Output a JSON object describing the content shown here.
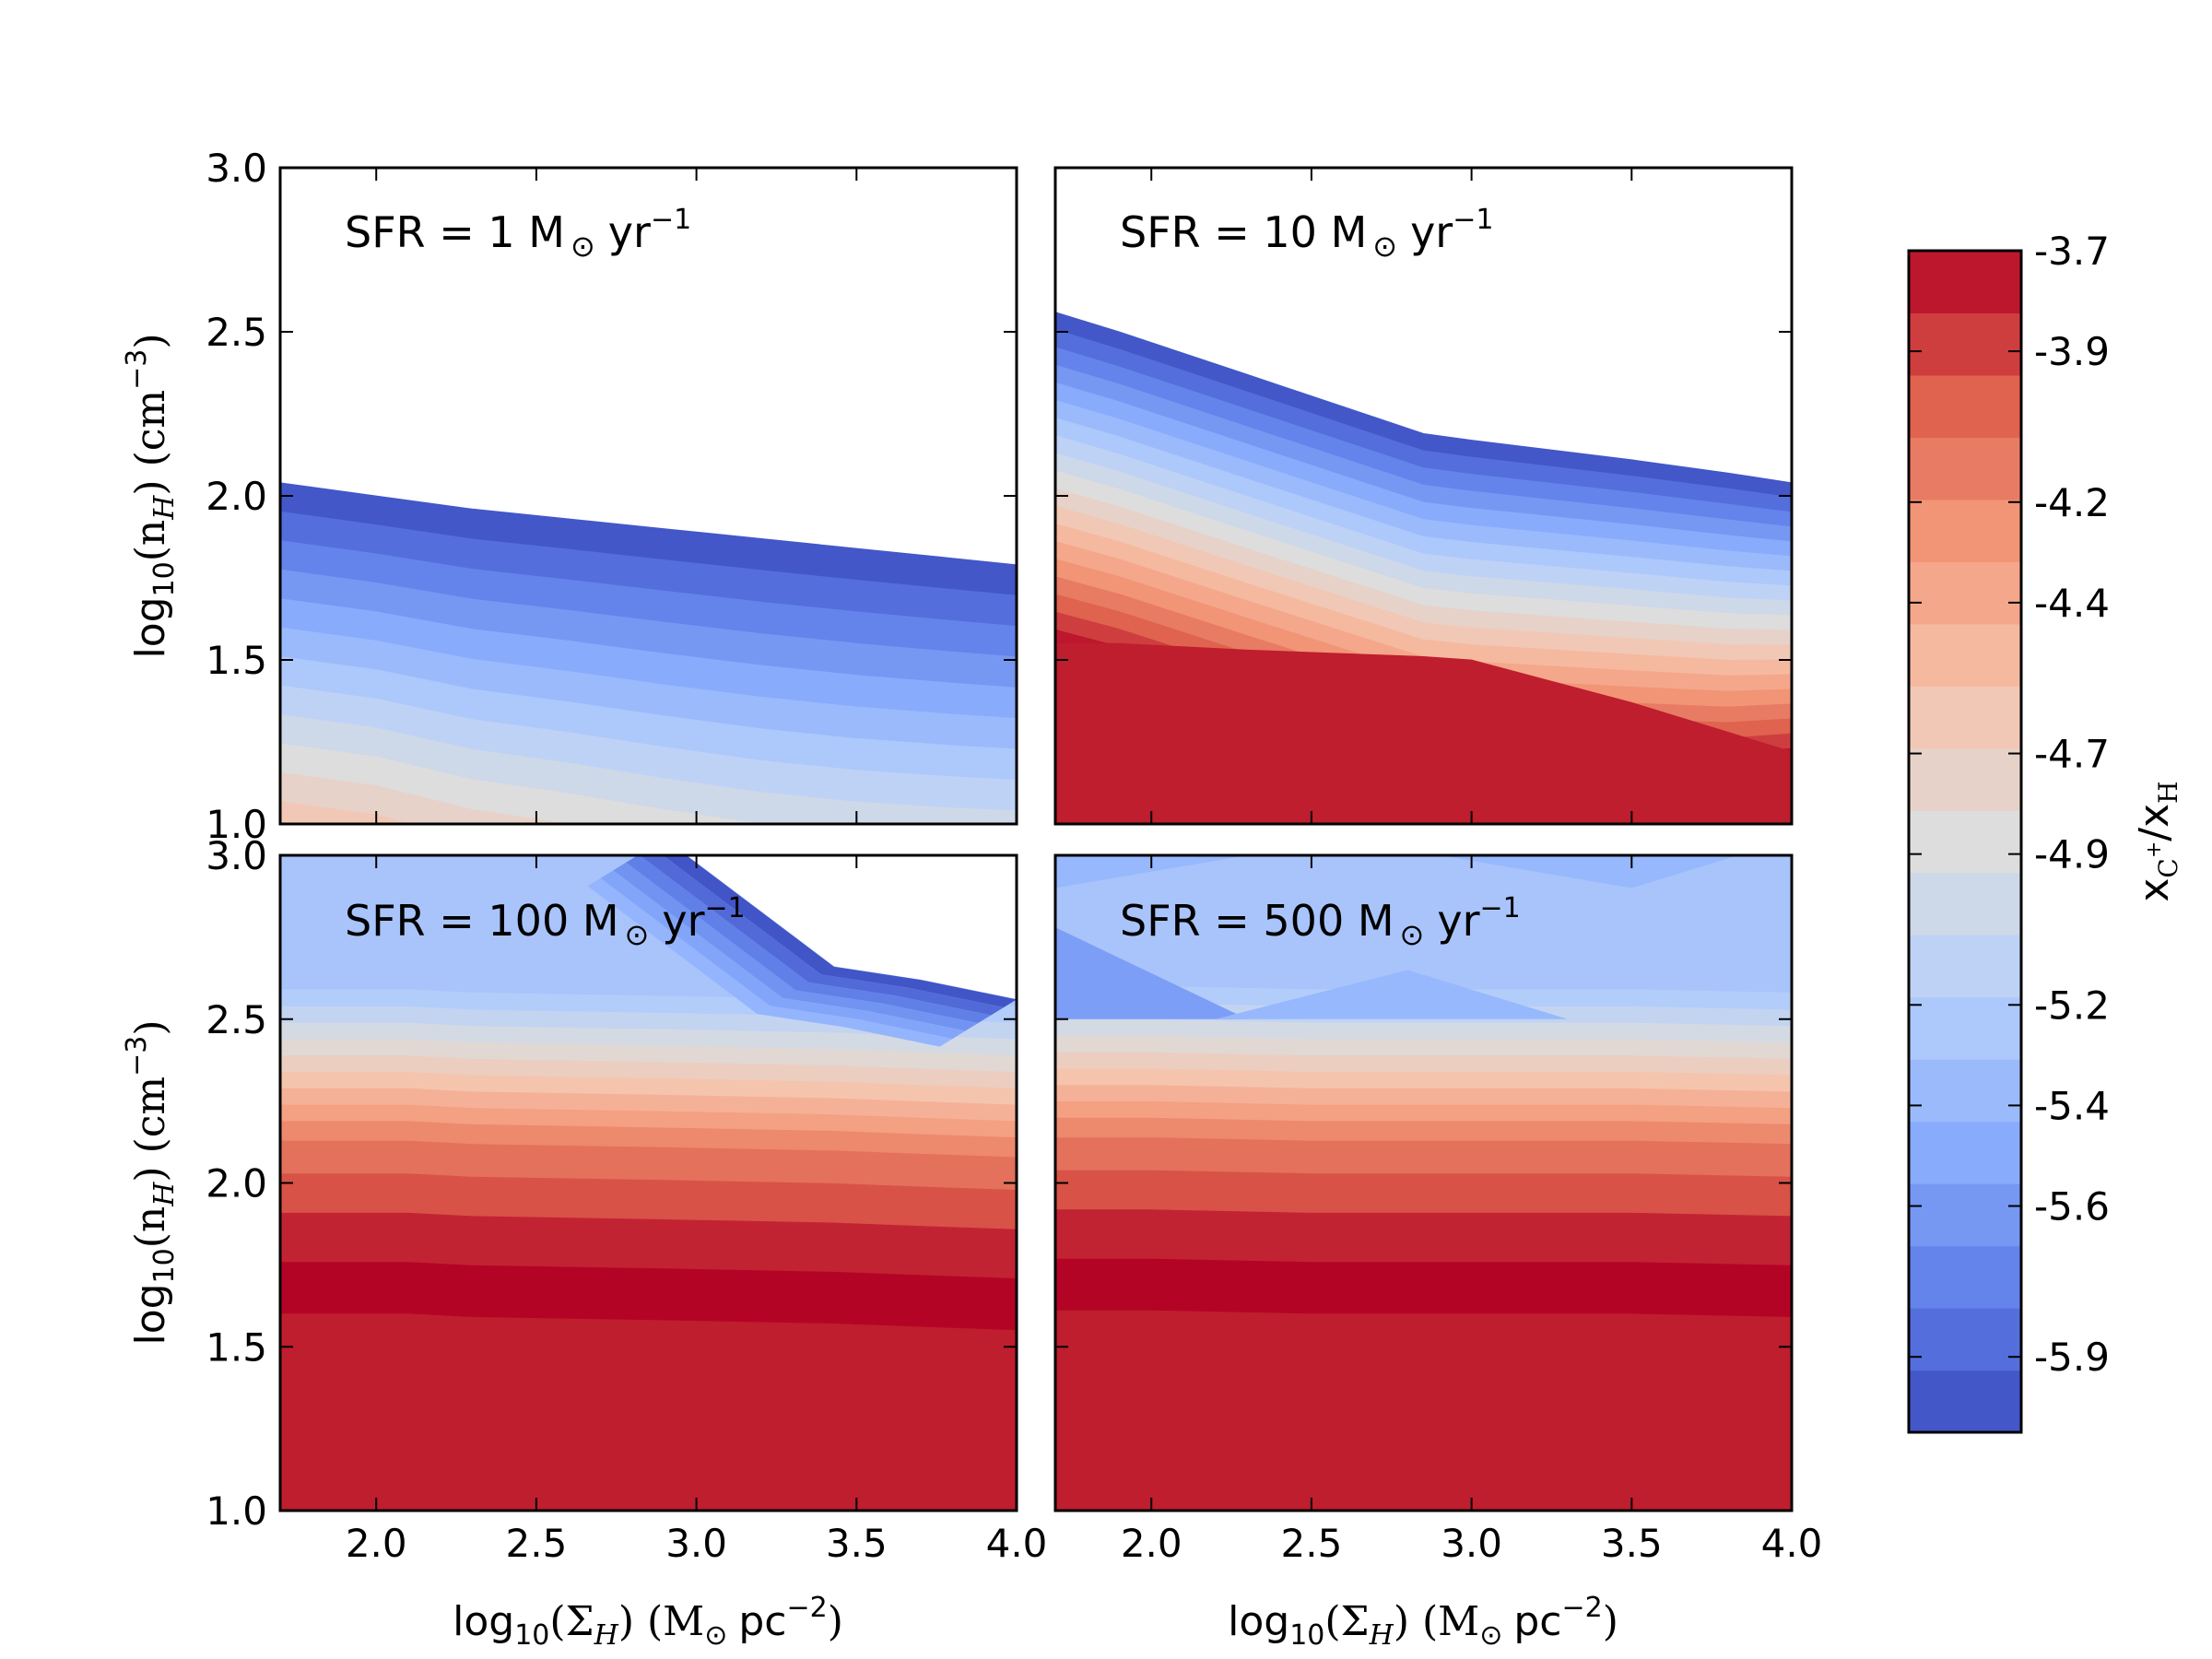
{
  "chart_data": {
    "type": "contourf",
    "colormap": "coolwarm",
    "colorbar": {
      "label_main": "x",
      "label_sup": "C",
      "label_sup2": "+",
      "label_rest": "/x",
      "label_sub": "H",
      "range": [
        -6.05,
        -3.7
      ],
      "tick_labels": [
        "-3.7",
        "-3.9",
        "-4.2",
        "-4.4",
        "-4.7",
        "-4.9",
        "-5.2",
        "-5.4",
        "-5.6",
        "-5.9"
      ],
      "tick_values": [
        -3.7,
        -3.9,
        -4.2,
        -4.4,
        -4.7,
        -4.9,
        -5.2,
        -5.4,
        -5.6,
        -5.9
      ],
      "n_levels": 19
    },
    "x_axis": {
      "range": [
        1.7,
        4.0
      ],
      "ticks": [
        2.0,
        2.5,
        3.0,
        3.5,
        4.0
      ],
      "tick_labels": [
        "2.0",
        "2.5",
        "3.0",
        "3.5",
        "4.0"
      ],
      "label_prefix": "log",
      "label_sub": "10",
      "label_mid": "(Σ",
      "label_sub2": "H",
      "label_suffix": ") (M",
      "label_sun": "⊙",
      "label_unit": "pc",
      "label_exp": "−2",
      "label_close": ")"
    },
    "y_axis": {
      "range": [
        1.0,
        3.0
      ],
      "ticks": [
        1.0,
        1.5,
        2.0,
        2.5,
        3.0
      ],
      "tick_labels": [
        "1.0",
        "1.5",
        "2.0",
        "2.5",
        "3.0"
      ],
      "label_prefix": "log",
      "label_sub": "10",
      "label_mid": "(n",
      "label_sub2": "H",
      "label_suffix": ") (cm",
      "label_exp": "−3",
      "label_close": ")"
    },
    "panels": [
      {
        "id": "sfr1",
        "ann_prefix": "SFR = 1 M",
        "ann_sun": "⊙",
        "ann_unit": "yr",
        "ann_exp": "−1",
        "x": [
          1.7,
          2.0,
          2.3,
          2.6,
          2.9,
          3.2,
          3.5,
          3.8,
          4.0
        ],
        "edge": [
          2.04,
          2.0,
          1.96,
          1.93,
          1.9,
          1.87,
          1.84,
          1.81,
          1.79
        ],
        "base": [
          -3.45,
          -3.45,
          -3.48,
          -3.5,
          -3.52,
          -3.55,
          -3.6,
          -3.68,
          -3.75
        ],
        "slope": [
          -1.4,
          -1.4,
          -1.35,
          -1.33,
          -1.3,
          -1.28,
          -1.28,
          -1.3,
          -1.32
        ],
        "fill_above": false
      },
      {
        "id": "sfr10",
        "ann_prefix": "SFR = 10 M",
        "ann_sun": "⊙",
        "ann_unit": "yr",
        "ann_exp": "−1",
        "x": [
          1.7,
          1.9,
          2.3,
          2.85,
          3.0,
          3.5,
          3.8,
          4.0
        ],
        "edge": [
          2.56,
          2.5,
          2.37,
          2.19,
          2.17,
          2.11,
          2.07,
          2.04
        ],
        "base": [
          -3.7,
          -3.7,
          -3.7,
          -3.7,
          -3.7,
          -3.72,
          -3.72,
          -3.85
        ],
        "slope": [
          -2.3,
          -2.32,
          -2.33,
          -2.36,
          -2.38,
          -2.5,
          -2.6,
          -2.75
        ],
        "flat": [
          1.55,
          1.55,
          1.53,
          1.51,
          1.5,
          1.37,
          1.28,
          1.22
        ],
        "fill_above": false
      },
      {
        "id": "sfr100",
        "ann_prefix": "SFR = 100 M",
        "ann_sun": "⊙",
        "ann_unit": "yr",
        "ann_exp": "−1",
        "x": [
          1.7,
          2.1,
          2.3,
          2.9,
          3.43,
          3.7,
          4.0
        ],
        "edge": [
          3.05,
          3.05,
          3.05,
          3.05,
          2.66,
          2.62,
          2.56
        ],
        "flat": [
          1.6,
          1.6,
          1.59,
          1.58,
          1.57,
          1.56,
          1.55
        ],
        "fill_above": true
      },
      {
        "id": "sfr500",
        "ann_prefix": "SFR = 500 M",
        "ann_sun": "⊙",
        "ann_unit": "yr",
        "ann_exp": "−1",
        "x": [
          1.7,
          2.0,
          2.5,
          3.0,
          3.5,
          4.0
        ],
        "edge": [
          3.05,
          3.05,
          3.05,
          3.05,
          3.05,
          3.05
        ],
        "flat": [
          1.61,
          1.61,
          1.6,
          1.6,
          1.6,
          1.59
        ],
        "fill_above": true
      }
    ]
  }
}
